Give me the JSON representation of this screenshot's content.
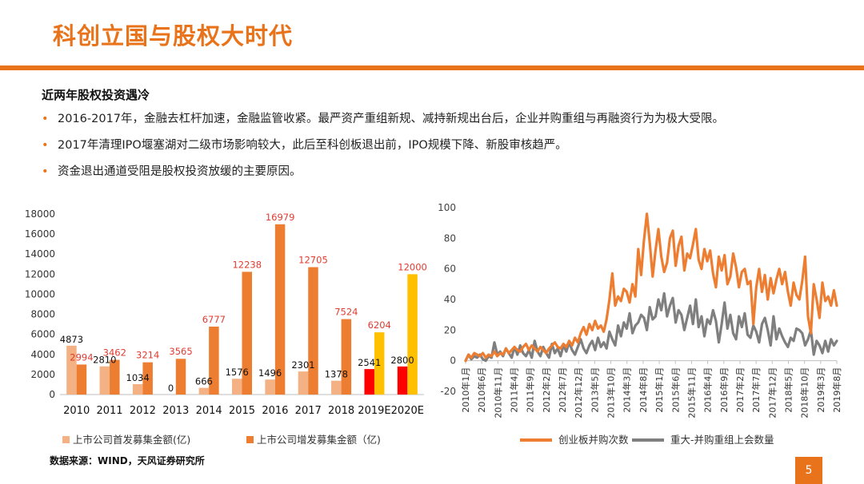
{
  "page": {
    "title": "科创立国与股权大时代",
    "subtitle": "近两年股权投资遇冷",
    "bullets": [
      "2016-2017年，金融去杠杆加速，金融监管收紧。最严资产重组新规、减持新规出台后，企业并购重组与再融资行为为极大受限。",
      "2017年清理IPO堰塞湖对二级市场影响较大，此后至科创板退出前，IPO规模下降、新股审核趋严。",
      "资金退出通道受阻是股权投资放缓的主要原因。"
    ],
    "source": "数据来源：WIND，天风证券研究所",
    "page_number": "5",
    "bullet_glyph": "•"
  },
  "colors": {
    "accent": "#e8731a",
    "ipo": "#f4b183",
    "seo": "#ed7d31",
    "ipo_forecast": "#ff0000",
    "seo_forecast": "#ffc000",
    "seo_label": "#e03c31",
    "gem_line": "#ed7d31",
    "mna_line": "#7f7f7f"
  },
  "chart_data": [
    {
      "type": "bar",
      "categories": [
        "2010",
        "2011",
        "2012",
        "2013",
        "2014",
        "2015",
        "2016",
        "2017",
        "2018",
        "2019E",
        "2020E"
      ],
      "series": [
        {
          "name": "上市公司首发募集金额(亿)",
          "values": [
            4873,
            2810,
            1034,
            0,
            666,
            1576,
            1496,
            2301,
            1378,
            2541,
            2800
          ]
        },
        {
          "name": "上市公司增发募集金额（亿)",
          "values": [
            2994,
            3462,
            3214,
            3565,
            6777,
            12238,
            16979,
            12705,
            7524,
            6204,
            12000
          ]
        }
      ],
      "ylim": [
        0,
        18000
      ],
      "yticks": [
        0,
        2000,
        4000,
        6000,
        8000,
        10000,
        12000,
        14000,
        16000,
        18000
      ],
      "data_labels": true,
      "legend": "bottom"
    },
    {
      "type": "line",
      "x_tick_labels": [
        "2010年1月",
        "2010年6月",
        "2010年11月",
        "2011年4月",
        "2011年9月",
        "2012年2月",
        "2012年7月",
        "2012年12月",
        "2013年5月",
        "2013年10月",
        "2014年3月",
        "2014年8月",
        "2015年1月",
        "2015年6月",
        "2015年11月",
        "2016年4月",
        "2016年9月",
        "2017年2月",
        "2017年7月",
        "2017年12月",
        "2018年5月",
        "2018年10月",
        "2019年3月",
        "2019年8月"
      ],
      "ylim": [
        -20,
        100
      ],
      "yticks": [
        -20,
        0,
        20,
        40,
        60,
        80,
        100
      ],
      "legend": "bottom",
      "series": [
        {
          "name": "创业板并购次数",
          "values": [
            0,
            4,
            2,
            5,
            4,
            3,
            5,
            2,
            4,
            3,
            6,
            3,
            5,
            4,
            8,
            5,
            7,
            9,
            7,
            6,
            9,
            11,
            7,
            10,
            8,
            6,
            9,
            7,
            5,
            8,
            10,
            12,
            9,
            8,
            11,
            9,
            13,
            10,
            15,
            12,
            18,
            22,
            17,
            24,
            20,
            26,
            21,
            23,
            19,
            27,
            40,
            57,
            36,
            42,
            39,
            47,
            45,
            38,
            50,
            42,
            73,
            56,
            79,
            96,
            77,
            55,
            72,
            86,
            68,
            58,
            64,
            80,
            85,
            62,
            75,
            81,
            59,
            70,
            67,
            76,
            86,
            66,
            60,
            73,
            65,
            72,
            57,
            48,
            68,
            59,
            69,
            50,
            55,
            70,
            61,
            48,
            58,
            60,
            50,
            52,
            24,
            48,
            60,
            45,
            56,
            40,
            54,
            44,
            53,
            60,
            50,
            58,
            45,
            36,
            51,
            43,
            40,
            52,
            68,
            29,
            18,
            50,
            40,
            28,
            51,
            39,
            42,
            36,
            46,
            36
          ]
        },
        {
          "name": "重大-并购重组上会数量",
          "values": [
            0,
            4,
            1,
            3,
            2,
            4,
            1,
            0,
            3,
            2,
            12,
            4,
            6,
            3,
            8,
            5,
            2,
            9,
            4,
            10,
            5,
            3,
            7,
            2,
            13,
            6,
            3,
            9,
            5,
            2,
            11,
            5,
            8,
            3,
            10,
            6,
            12,
            7,
            4,
            9,
            14,
            8,
            5,
            10,
            13,
            7,
            15,
            9,
            12,
            8,
            19,
            14,
            10,
            23,
            16,
            25,
            21,
            31,
            18,
            23,
            25,
            30,
            28,
            20,
            35,
            27,
            29,
            40,
            33,
            44,
            29,
            36,
            41,
            25,
            33,
            30,
            20,
            28,
            36,
            24,
            40,
            22,
            29,
            16,
            27,
            24,
            33,
            26,
            12,
            24,
            38,
            21,
            30,
            18,
            14,
            29,
            22,
            31,
            17,
            15,
            23,
            19,
            12,
            24,
            28,
            20,
            10,
            29,
            14,
            21,
            16,
            12,
            9,
            15,
            13,
            21,
            20,
            18,
            10,
            14,
            20,
            4,
            13,
            10,
            5,
            13,
            6,
            14,
            10,
            13
          ]
        }
      ]
    }
  ]
}
